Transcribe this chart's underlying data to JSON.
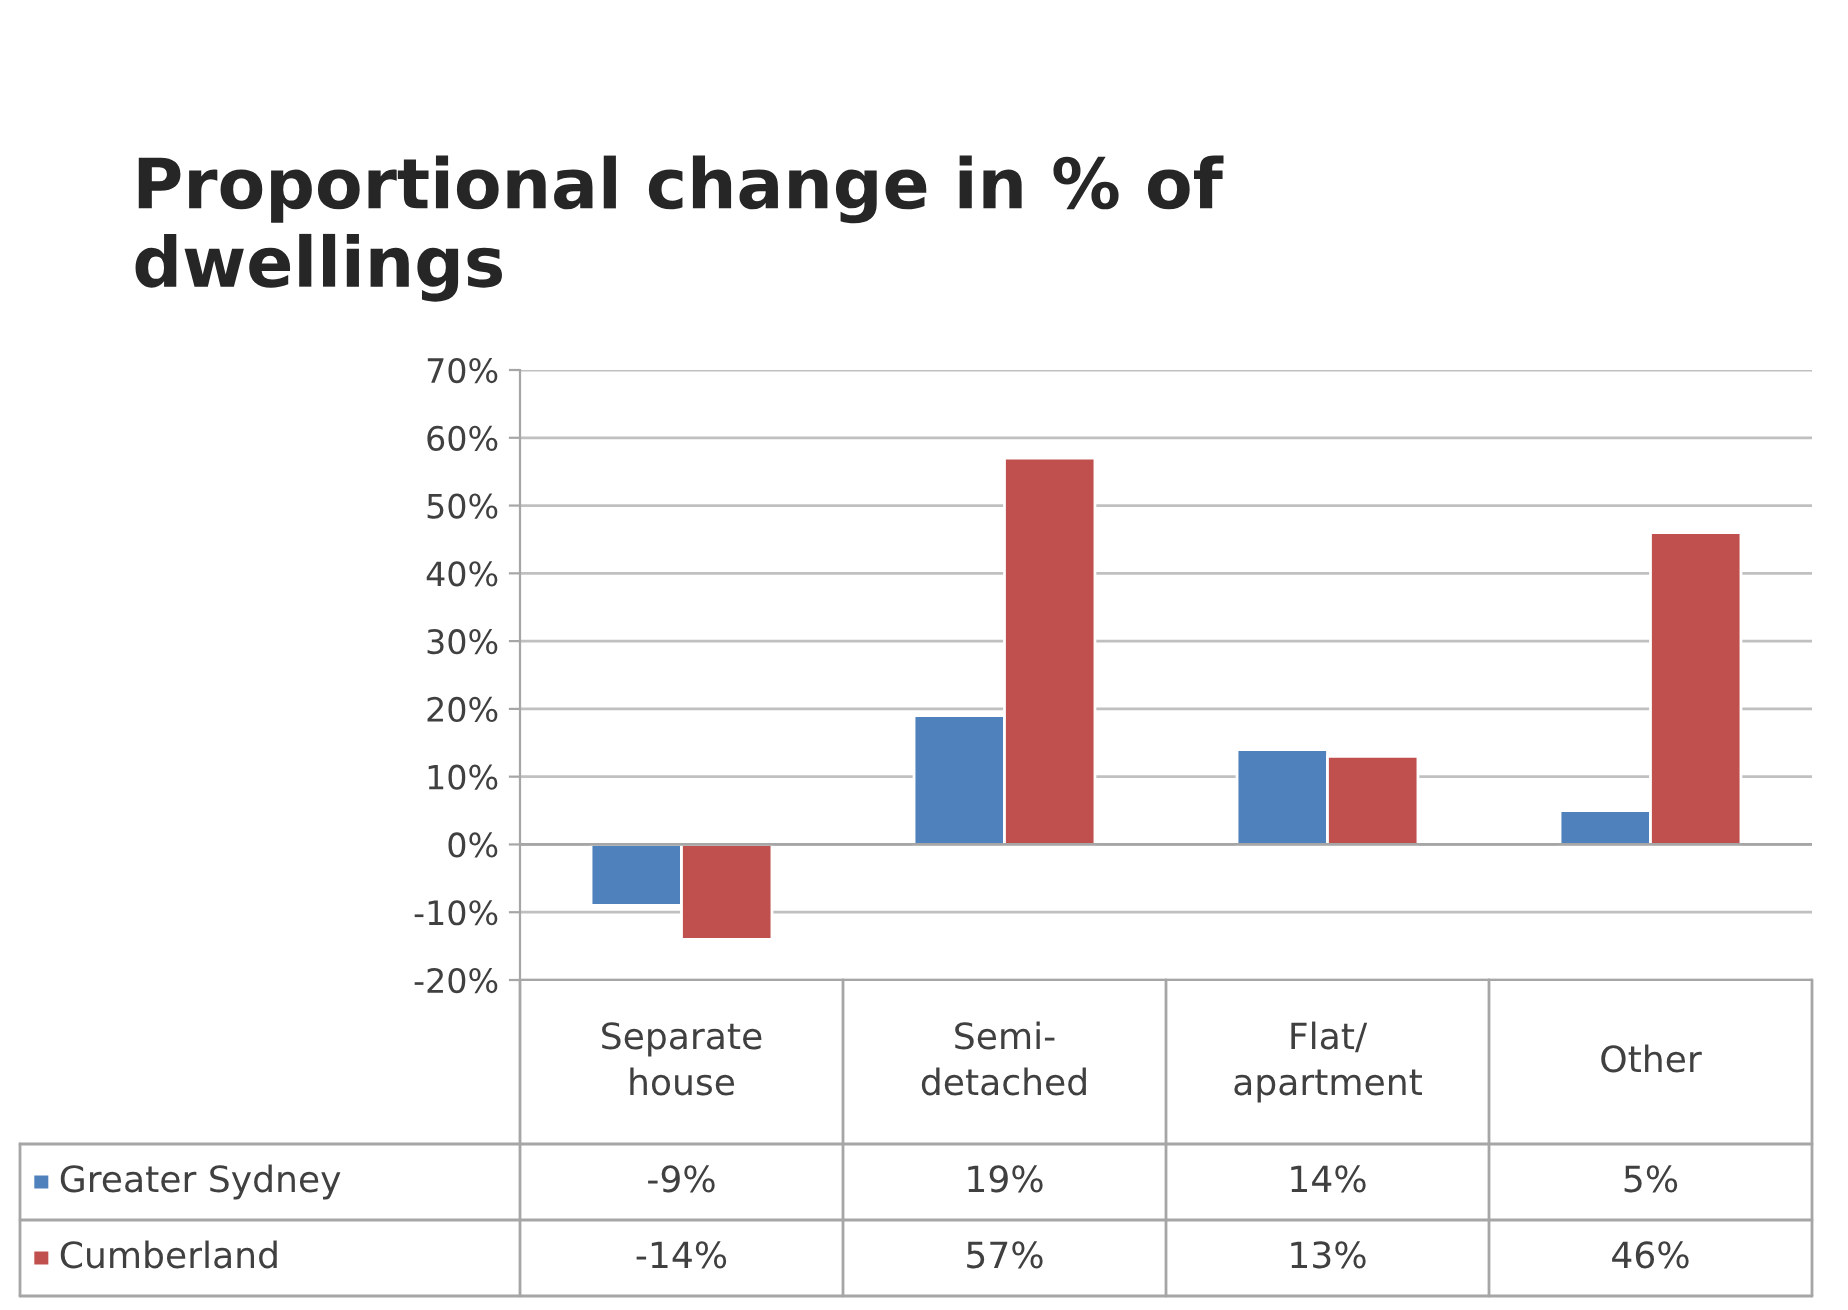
{
  "chart_data": {
    "type": "bar",
    "title": "Proportional change in % of\ndwellings",
    "categories": [
      "Separate\nhouse",
      "Semi-\ndetached",
      "Flat/\napartment",
      "Other"
    ],
    "series": [
      {
        "name": "Greater Sydney",
        "color": "#4f81bd",
        "values": [
          -9,
          19,
          14,
          5
        ],
        "value_labels": [
          "-9%",
          "19%",
          "14%",
          "5%"
        ]
      },
      {
        "name": "Cumberland",
        "color": "#c0504d",
        "values": [
          -14,
          57,
          13,
          46
        ],
        "value_labels": [
          "-14%",
          "57%",
          "13%",
          "46%"
        ]
      }
    ],
    "ylim": [
      -20,
      70
    ],
    "yticks": [
      {
        "value": -20,
        "label": "-20%"
      },
      {
        "value": -10,
        "label": "-10%"
      },
      {
        "value": 0,
        "label": "0%"
      },
      {
        "value": 10,
        "label": "10%"
      },
      {
        "value": 20,
        "label": "20%"
      },
      {
        "value": 30,
        "label": "30%"
      },
      {
        "value": 40,
        "label": "40%"
      },
      {
        "value": 50,
        "label": "50%"
      },
      {
        "value": 60,
        "label": "60%"
      },
      {
        "value": 70,
        "label": "70%"
      }
    ],
    "grid": "y",
    "legend": "bottom"
  }
}
